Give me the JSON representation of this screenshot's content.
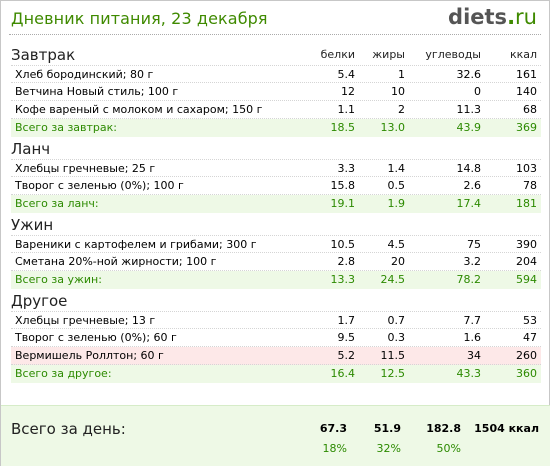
{
  "page": {
    "title": "Дневник питания, 23 декабря",
    "logo": {
      "name": "diets",
      "dot": ".",
      "tld": "ru"
    }
  },
  "columns": {
    "protein": "белки",
    "fat": "жиры",
    "carbs": "углеводы",
    "kcal": "ккал"
  },
  "sections": [
    {
      "title": "Завтрак",
      "items": [
        {
          "name": "Хлеб бородинский; 80 г",
          "protein": "5.4",
          "fat": "1",
          "carbs": "32.6",
          "kcal": "161"
        },
        {
          "name": "Ветчина Новый стиль; 100 г",
          "protein": "12",
          "fat": "10",
          "carbs": "0",
          "kcal": "140"
        },
        {
          "name": "Кофе вареный с молоком и сахаром; 150 г",
          "protein": "1.1",
          "fat": "2",
          "carbs": "11.3",
          "kcal": "68"
        }
      ],
      "total": {
        "label": "Всего за завтрак:",
        "protein": "18.5",
        "fat": "13.0",
        "carbs": "43.9",
        "kcal": "369"
      }
    },
    {
      "title": "Ланч",
      "items": [
        {
          "name": "Хлебцы гречневые; 25 г",
          "protein": "3.3",
          "fat": "1.4",
          "carbs": "14.8",
          "kcal": "103"
        },
        {
          "name": "Творог с зеленью (0%); 100 г",
          "protein": "15.8",
          "fat": "0.5",
          "carbs": "2.6",
          "kcal": "78"
        }
      ],
      "total": {
        "label": "Всего за ланч:",
        "protein": "19.1",
        "fat": "1.9",
        "carbs": "17.4",
        "kcal": "181"
      }
    },
    {
      "title": "Ужин",
      "items": [
        {
          "name": "Вареники с картофелем и грибами; 300 г",
          "protein": "10.5",
          "fat": "4.5",
          "carbs": "75",
          "kcal": "390"
        },
        {
          "name": "Сметана 20%-ной жирности; 100 г",
          "protein": "2.8",
          "fat": "20",
          "carbs": "3.2",
          "kcal": "204"
        }
      ],
      "total": {
        "label": "Всего за ужин:",
        "protein": "13.3",
        "fat": "24.5",
        "carbs": "78.2",
        "kcal": "594"
      }
    },
    {
      "title": "Другое",
      "items": [
        {
          "name": "Хлебцы гречневые; 13 г",
          "protein": "1.7",
          "fat": "0.7",
          "carbs": "7.7",
          "kcal": "53"
        },
        {
          "name": "Творог с зеленью (0%); 60 г",
          "protein": "9.5",
          "fat": "0.3",
          "carbs": "1.6",
          "kcal": "47"
        },
        {
          "name": "Вермишель Роллтон; 60 г",
          "protein": "5.2",
          "fat": "11.5",
          "carbs": "34",
          "kcal": "260"
        }
      ],
      "total": {
        "label": "Всего за другое:",
        "protein": "16.4",
        "fat": "12.5",
        "carbs": "43.3",
        "kcal": "360"
      }
    }
  ],
  "day_total": {
    "label": "Всего за день:",
    "protein": "67.3",
    "fat": "51.9",
    "carbs": "182.8",
    "kcal": "1504 ккал",
    "protein_pct": "18%",
    "fat_pct": "32%",
    "carbs_pct": "50%"
  },
  "colors": {
    "accent": "#3f8a00",
    "total_bg": "#eef9e6",
    "warn_bg": "#fde8e8"
  }
}
